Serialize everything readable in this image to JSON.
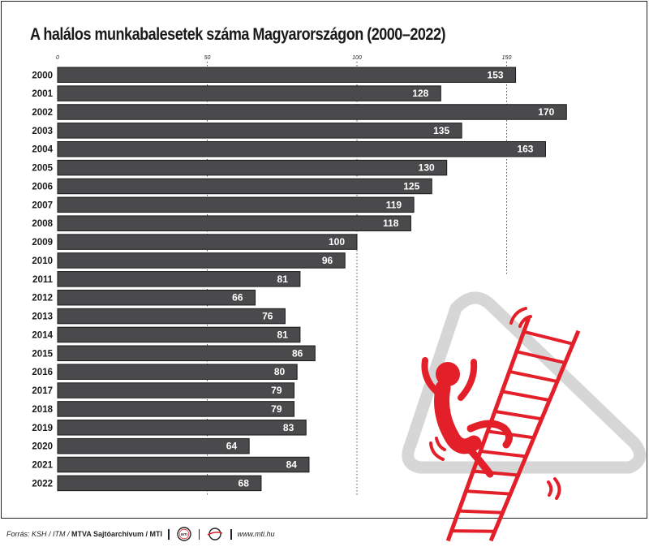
{
  "title": "A halálos munkabalesetek száma Magyarországon (2000–2022)",
  "footer": {
    "source_prefix": "Forrás: KSH / ITM / ",
    "source_agency": "MTVA Sajtóarchívum / MTI",
    "logo_mti_text": "MTI",
    "url": "www.mti.hu"
  },
  "colors": {
    "bar": "#4a4a4c",
    "bar_edge": "#1a1a1a",
    "label": "#ffffff",
    "accent_red": "#e3202a",
    "sign_gray": "#d6d6d6"
  },
  "chart_data": {
    "type": "bar",
    "orientation": "horizontal",
    "title": "A halálos munkabalesetek száma Magyarországon (2000–2022)",
    "xlim": [
      0,
      170
    ],
    "ticks": [
      0,
      50,
      100,
      150
    ],
    "grid": "dotted vertical at 50, 100, 150",
    "categories": [
      "2000",
      "2001",
      "2002",
      "2003",
      "2004",
      "2005",
      "2006",
      "2007",
      "2008",
      "2009",
      "2010",
      "2011",
      "2012",
      "2013",
      "2014",
      "2015",
      "2016",
      "2017",
      "2018",
      "2019",
      "2020",
      "2021",
      "2022"
    ],
    "values": [
      153,
      128,
      170,
      135,
      163,
      130,
      125,
      119,
      118,
      100,
      96,
      81,
      66,
      76,
      81,
      86,
      80,
      79,
      79,
      83,
      64,
      84,
      68
    ]
  }
}
